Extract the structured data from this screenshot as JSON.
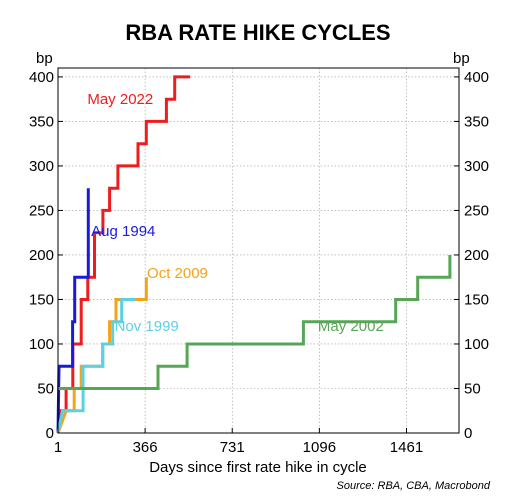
{
  "chart_data": {
    "type": "line",
    "title": "RBA RATE HIKE CYCLES",
    "xlabel": "Days since first rate hike in cycle",
    "ylabel_left": "bp",
    "ylabel_right": "bp",
    "source": "Source: RBA, CBA, Macrobond",
    "xlim": [
      1,
      1681
    ],
    "ylim": [
      0,
      410
    ],
    "x_ticks": [
      1,
      366,
      731,
      1096,
      1461
    ],
    "y_ticks": [
      0,
      50,
      100,
      150,
      200,
      250,
      300,
      350,
      400
    ],
    "grid": true,
    "legend": "inline labels",
    "series": [
      {
        "name": "May 2022",
        "color": "#ee1c1c",
        "label_anchor": [
          124,
          375
        ],
        "points": [
          [
            1,
            0
          ],
          [
            8,
            25
          ],
          [
            35,
            25
          ],
          [
            35,
            50
          ],
          [
            63,
            50
          ],
          [
            63,
            100
          ],
          [
            98,
            100
          ],
          [
            98,
            150
          ],
          [
            126,
            150
          ],
          [
            126,
            175
          ],
          [
            154,
            175
          ],
          [
            154,
            225
          ],
          [
            189,
            225
          ],
          [
            189,
            250
          ],
          [
            217,
            250
          ],
          [
            217,
            275
          ],
          [
            252,
            275
          ],
          [
            252,
            300
          ],
          [
            336,
            300
          ],
          [
            336,
            325
          ],
          [
            371,
            325
          ],
          [
            371,
            350
          ],
          [
            455,
            350
          ],
          [
            455,
            375
          ],
          [
            490,
            375
          ],
          [
            490,
            400
          ],
          [
            555,
            400
          ]
        ]
      },
      {
        "name": "Aug 1994",
        "color": "#1a1adb",
        "label_anchor": [
          140,
          227
        ],
        "points": [
          [
            1,
            0
          ],
          [
            5,
            75
          ],
          [
            62,
            75
          ],
          [
            62,
            125
          ],
          [
            71,
            125
          ],
          [
            71,
            175
          ],
          [
            128,
            175
          ],
          [
            128,
            275
          ]
        ]
      },
      {
        "name": "Oct 2009",
        "color": "#f5a21b",
        "label_anchor": [
          374,
          180
        ],
        "points": [
          [
            1,
            0
          ],
          [
            35,
            25
          ],
          [
            69,
            25
          ],
          [
            69,
            50
          ],
          [
            98,
            50
          ],
          [
            98,
            75
          ],
          [
            188,
            75
          ],
          [
            188,
            100
          ],
          [
            217,
            100
          ],
          [
            217,
            125
          ],
          [
            244,
            125
          ],
          [
            244,
            150
          ],
          [
            371,
            150
          ],
          [
            371,
            175
          ]
        ]
      },
      {
        "name": "Nov 1999",
        "color": "#5cd1e1",
        "label_anchor": [
          238,
          120
        ],
        "points": [
          [
            1,
            0
          ],
          [
            20,
            25
          ],
          [
            106,
            25
          ],
          [
            106,
            75
          ],
          [
            189,
            75
          ],
          [
            189,
            100
          ],
          [
            230,
            100
          ],
          [
            230,
            125
          ],
          [
            268,
            125
          ],
          [
            268,
            150
          ],
          [
            327,
            150
          ]
        ]
      },
      {
        "name": "May 2002",
        "color": "#55a655",
        "label_anchor": [
          1090,
          120
        ],
        "points": [
          [
            1,
            50
          ],
          [
            420,
            50
          ],
          [
            420,
            75
          ],
          [
            542,
            75
          ],
          [
            542,
            100
          ],
          [
            1029,
            100
          ],
          [
            1029,
            125
          ],
          [
            1416,
            125
          ],
          [
            1416,
            150
          ],
          [
            1508,
            150
          ],
          [
            1508,
            175
          ],
          [
            1643,
            175
          ],
          [
            1643,
            200
          ]
        ]
      }
    ]
  }
}
